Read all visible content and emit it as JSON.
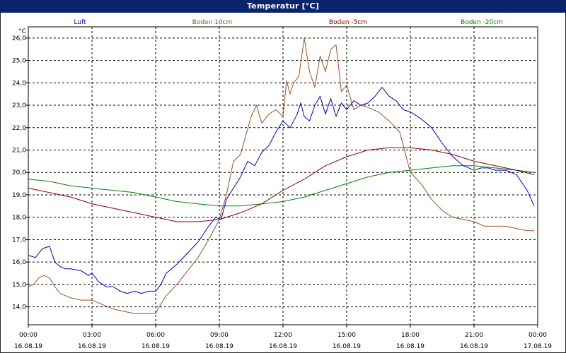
{
  "chart_data": {
    "type": "line",
    "title": "Temperatur [°C]",
    "ylabel": "°C",
    "ylim": [
      13.2,
      26.5
    ],
    "xlim": [
      "2019-08-16 00:00",
      "2019-08-17 00:00"
    ],
    "grid": true,
    "legend_placement": "top",
    "y_ticks": [
      "26,0",
      "25,0",
      "24,0",
      "23,0",
      "22,0",
      "21,0",
      "20,0",
      "19,0",
      "18,0",
      "17,0",
      "16,0",
      "15,0",
      "14,0"
    ],
    "x_ticks": [
      {
        "time": "00:00",
        "date": "16.08.19"
      },
      {
        "time": "03:00",
        "date": "16.08.19"
      },
      {
        "time": "06:00",
        "date": "16.08.19"
      },
      {
        "time": "09:00",
        "date": "16.08.19"
      },
      {
        "time": "12:00",
        "date": "16.08.19"
      },
      {
        "time": "15:00",
        "date": "16.08.19"
      },
      {
        "time": "18:00",
        "date": "16.08.19"
      },
      {
        "time": "21:00",
        "date": "16.08.19"
      },
      {
        "time": "00:00",
        "date": "17.08.19"
      }
    ],
    "series": [
      {
        "name": "Luft",
        "color": "#0000cc",
        "x": [
          "00:00",
          "00:20",
          "00:40",
          "01:00",
          "01:15",
          "01:30",
          "01:45",
          "02:00",
          "02:30",
          "02:50",
          "03:00",
          "03:20",
          "03:40",
          "04:00",
          "04:20",
          "04:40",
          "05:00",
          "05:20",
          "05:40",
          "06:00",
          "06:15",
          "06:30",
          "07:00",
          "07:30",
          "08:00",
          "08:30",
          "08:50",
          "09:05",
          "09:20",
          "09:40",
          "10:00",
          "10:20",
          "10:40",
          "11:00",
          "11:20",
          "11:40",
          "12:00",
          "12:20",
          "12:40",
          "12:50",
          "13:00",
          "13:15",
          "13:30",
          "13:45",
          "14:00",
          "14:15",
          "14:30",
          "14:45",
          "15:00",
          "15:20",
          "15:40",
          "16:00",
          "16:20",
          "16:40",
          "17:00",
          "17:20",
          "17:40",
          "18:00",
          "18:30",
          "19:00",
          "19:30",
          "20:00",
          "20:30",
          "21:00",
          "21:20",
          "21:40",
          "22:00",
          "22:30",
          "23:00",
          "23:30",
          "23:50"
        ],
        "y": [
          16.3,
          16.2,
          16.6,
          16.7,
          16.0,
          15.8,
          15.7,
          15.7,
          15.6,
          15.4,
          15.5,
          15.1,
          14.9,
          14.9,
          14.7,
          14.6,
          14.7,
          14.6,
          14.7,
          14.7,
          15.0,
          15.5,
          15.9,
          16.4,
          16.9,
          17.6,
          18.0,
          17.9,
          18.8,
          19.3,
          19.8,
          20.5,
          20.3,
          20.9,
          21.2,
          21.8,
          22.3,
          22.0,
          22.6,
          23.1,
          22.5,
          22.3,
          23.0,
          23.4,
          22.6,
          23.3,
          22.5,
          23.1,
          22.8,
          23.2,
          23.0,
          23.1,
          23.4,
          23.8,
          23.4,
          23.2,
          22.8,
          22.7,
          22.4,
          22.0,
          21.3,
          20.7,
          20.3,
          20.1,
          20.2,
          20.2,
          20.1,
          20.1,
          19.9,
          19.2,
          18.5
        ]
      },
      {
        "name": "Boden 10cm",
        "color": "#a0501e",
        "x": [
          "00:00",
          "00:15",
          "00:30",
          "00:45",
          "01:00",
          "01:15",
          "01:30",
          "01:45",
          "02:00",
          "02:30",
          "03:00",
          "03:30",
          "04:00",
          "04:30",
          "05:00",
          "05:30",
          "06:00",
          "06:10",
          "06:30",
          "07:00",
          "07:30",
          "08:00",
          "08:30",
          "09:00",
          "09:20",
          "09:40",
          "10:00",
          "10:30",
          "10:45",
          "11:00",
          "11:20",
          "11:40",
          "12:00",
          "12:10",
          "12:20",
          "12:30",
          "12:45",
          "13:00",
          "13:15",
          "13:30",
          "13:45",
          "14:00",
          "14:15",
          "14:30",
          "14:45",
          "15:00",
          "15:20",
          "15:40",
          "16:00",
          "16:30",
          "17:00",
          "17:30",
          "18:00",
          "18:30",
          "19:00",
          "19:30",
          "20:00",
          "20:30",
          "21:00",
          "21:30",
          "22:00",
          "22:30",
          "23:00",
          "23:30",
          "23:50"
        ],
        "y": [
          14.9,
          15.0,
          15.3,
          15.4,
          15.3,
          14.9,
          14.6,
          14.5,
          14.4,
          14.3,
          14.3,
          14.1,
          13.9,
          13.8,
          13.7,
          13.7,
          13.7,
          14.0,
          14.5,
          15.0,
          15.6,
          16.2,
          17.0,
          17.9,
          19.0,
          20.5,
          20.8,
          22.5,
          23.0,
          22.2,
          22.6,
          22.8,
          22.5,
          24.1,
          23.5,
          24.0,
          24.3,
          26.0,
          24.5,
          23.8,
          25.2,
          24.5,
          25.5,
          25.7,
          23.6,
          23.9,
          22.8,
          23.0,
          22.9,
          22.7,
          22.3,
          21.8,
          20.0,
          19.5,
          18.8,
          18.3,
          18.0,
          17.9,
          17.8,
          17.6,
          17.6,
          17.6,
          17.5,
          17.4,
          17.4
        ]
      },
      {
        "name": "Boden -5cm",
        "color": "#8b0000",
        "x": [
          "00:00",
          "01:00",
          "02:00",
          "03:00",
          "04:00",
          "05:00",
          "06:00",
          "07:00",
          "08:00",
          "09:00",
          "10:00",
          "11:00",
          "12:00",
          "13:00",
          "14:00",
          "15:00",
          "16:00",
          "17:00",
          "18:00",
          "19:00",
          "20:00",
          "21:00",
          "22:00",
          "23:00",
          "23:50"
        ],
        "y": [
          19.3,
          19.1,
          18.9,
          18.6,
          18.4,
          18.2,
          18.0,
          17.8,
          17.8,
          17.9,
          18.2,
          18.6,
          19.2,
          19.7,
          20.3,
          20.7,
          21.0,
          21.1,
          21.1,
          21.0,
          20.8,
          20.5,
          20.3,
          20.1,
          19.9
        ]
      },
      {
        "name": "Boden -20cm",
        "color": "#008000",
        "x": [
          "00:00",
          "01:00",
          "02:00",
          "03:00",
          "04:00",
          "05:00",
          "06:00",
          "07:00",
          "08:00",
          "09:00",
          "10:00",
          "11:00",
          "12:00",
          "13:00",
          "14:00",
          "15:00",
          "16:00",
          "17:00",
          "18:00",
          "19:00",
          "20:00",
          "21:00",
          "22:00",
          "23:00",
          "23:50"
        ],
        "y": [
          19.7,
          19.6,
          19.4,
          19.3,
          19.2,
          19.1,
          18.9,
          18.7,
          18.6,
          18.5,
          18.5,
          18.6,
          18.7,
          18.9,
          19.2,
          19.5,
          19.8,
          20.0,
          20.1,
          20.2,
          20.3,
          20.3,
          20.2,
          20.1,
          20.0
        ]
      }
    ]
  }
}
